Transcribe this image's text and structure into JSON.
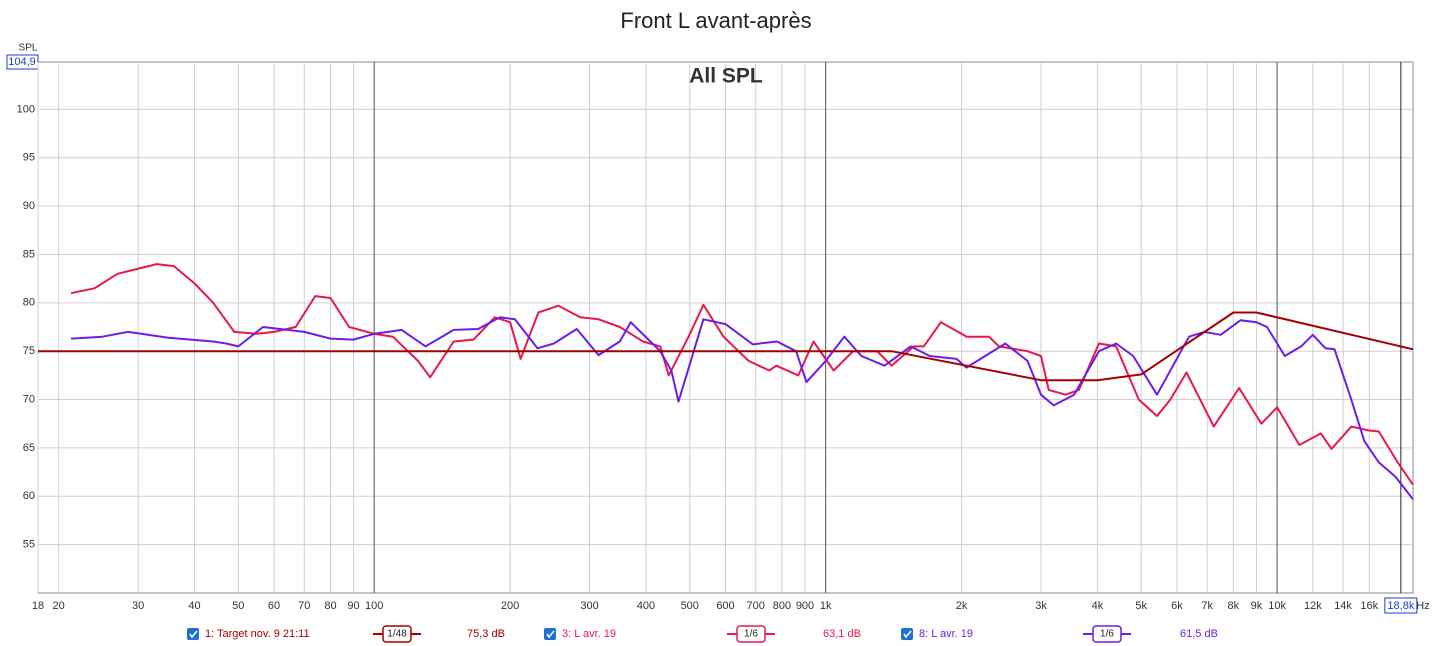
{
  "chart_data": {
    "type": "line",
    "title": "Front L avant-après",
    "annotation": "All SPL",
    "y_label": "SPL",
    "x_unit": "Hz",
    "log_x": true,
    "grid": true,
    "xlim": [
      18,
      20000
    ],
    "ylim": [
      50,
      104.9
    ],
    "y_top_label": {
      "value": 104.9,
      "label": "104,9"
    },
    "x_marker": {
      "value": 18800,
      "label": "18,8k"
    },
    "yticks": [
      55,
      60,
      65,
      70,
      75,
      80,
      85,
      90,
      95,
      100
    ],
    "xticks": [
      18,
      20,
      30,
      40,
      50,
      60,
      70,
      80,
      90,
      100,
      200,
      300,
      400,
      500,
      600,
      700,
      800,
      900,
      {
        "value": 1000,
        "label": "1k"
      },
      {
        "value": 2000,
        "label": "2k"
      },
      {
        "value": 3000,
        "label": "3k"
      },
      {
        "value": 4000,
        "label": "4k"
      },
      {
        "value": 5000,
        "label": "5k"
      },
      {
        "value": 6000,
        "label": "6k"
      },
      {
        "value": 7000,
        "label": "7k"
      },
      {
        "value": 8000,
        "label": "8k"
      },
      {
        "value": 9000,
        "label": "9k"
      },
      {
        "value": 10000,
        "label": "10k"
      },
      {
        "value": 12000,
        "label": "12k"
      },
      {
        "value": 14000,
        "label": "14k"
      },
      {
        "value": 16000,
        "label": "16k"
      }
    ],
    "series": [
      {
        "name": "1: Target nov. 9 21:11",
        "color": "#a50000",
        "smoothing": "1/48",
        "readout": "75,3 dB",
        "x": [
          18,
          1400,
          3000,
          4000,
          5000,
          8000,
          9000,
          20000
        ],
        "values": [
          75,
          75,
          72,
          72,
          72.6,
          79,
          79,
          75.2
        ]
      },
      {
        "name": "3: L avr. 19",
        "color": "#e8194a",
        "smoothing": "1/6",
        "readout": "63,1 dB",
        "x": [
          21.3,
          24,
          27,
          33,
          36,
          40,
          44,
          49,
          55,
          60,
          67,
          74,
          80,
          88,
          100,
          110,
          125,
          133,
          150,
          166,
          185,
          200,
          211,
          231,
          256,
          286,
          314,
          350,
          394,
          430,
          449,
          497,
          536,
          594,
          675,
          750,
          778,
          870,
          940,
          1042,
          1150,
          1300,
          1400,
          1567,
          1650,
          1800,
          2054,
          2300,
          2420,
          2800,
          3000,
          3120,
          3400,
          3640,
          4030,
          4400,
          4940,
          5420,
          5800,
          6300,
          7240,
          8240,
          9230,
          10000,
          11200,
          12500,
          13200,
          14600,
          16000,
          16800,
          18500,
          20000
        ],
        "values": [
          81,
          81.5,
          83,
          84,
          83.8,
          82,
          80,
          77,
          76.8,
          77,
          77.5,
          80.7,
          80.5,
          77.5,
          76.8,
          76.5,
          74,
          72.3,
          76,
          76.2,
          78.5,
          78,
          74.2,
          79,
          79.7,
          78.5,
          78.3,
          77.5,
          76,
          75.5,
          72.5,
          76.5,
          79.8,
          76.5,
          74,
          73,
          73.5,
          72.5,
          76,
          73,
          75,
          75,
          73.5,
          75.5,
          75.5,
          78,
          76.5,
          76.5,
          75.5,
          75,
          74.5,
          71,
          70.5,
          71,
          75.8,
          75.5,
          70,
          68.3,
          70,
          72.8,
          67.2,
          71.2,
          67.5,
          69.2,
          65.3,
          66.5,
          64.9,
          67.2,
          66.8,
          66.7,
          63.5,
          61.2
        ]
      },
      {
        "name": "8: L avr. 19",
        "color": "#6a1ee8",
        "smoothing": "1/6",
        "readout": "61,5 dB",
        "x": [
          21.3,
          25,
          28.5,
          35,
          44,
          47,
          50,
          56.7,
          70,
          80,
          90,
          100,
          115,
          130,
          150,
          170,
          190,
          205,
          230,
          250,
          281,
          314,
          350,
          370,
          430,
          455,
          472,
          536,
          600,
          690,
          780,
          860,
          907,
          1000,
          1100,
          1200,
          1350,
          1543,
          1700,
          1950,
          2050,
          2500,
          2800,
          3000,
          3200,
          3550,
          4030,
          4400,
          4800,
          5420,
          6380,
          6900,
          7500,
          8300,
          9000,
          9500,
          10400,
          11300,
          12000,
          12800,
          13400,
          14600,
          15600,
          16800,
          18300,
          20000
        ],
        "values": [
          76.3,
          76.5,
          77,
          76.4,
          76,
          75.8,
          75.5,
          77.5,
          77,
          76.3,
          76.2,
          76.8,
          77.2,
          75.5,
          77.2,
          77.3,
          78.5,
          78.3,
          75.3,
          75.8,
          77.3,
          74.6,
          76,
          78,
          75,
          73,
          69.8,
          78.3,
          77.8,
          75.7,
          76,
          75,
          71.8,
          74,
          76.5,
          74.5,
          73.5,
          75.5,
          74.5,
          74.2,
          73.3,
          75.8,
          74,
          70.5,
          69.4,
          70.5,
          75,
          75.8,
          74.5,
          70.5,
          76.5,
          77,
          76.7,
          78.2,
          78,
          77.5,
          74.5,
          75.5,
          76.7,
          75.3,
          75.2,
          70,
          65.7,
          63.5,
          62,
          59.7
        ]
      }
    ]
  }
}
